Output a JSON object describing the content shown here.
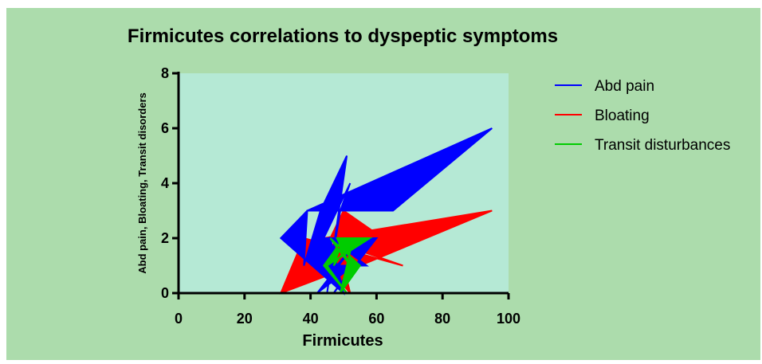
{
  "chart_data": {
    "type": "area",
    "title": "Firmicutes correlations to dyspeptic symptoms",
    "xlabel": "Firmicutes",
    "ylabel": "Abd pain, Bloating, Transit disorders",
    "xlim": [
      0,
      100
    ],
    "ylim": [
      0,
      8
    ],
    "xticks": [
      "0",
      "20",
      "40",
      "60",
      "80",
      "100"
    ],
    "yticks": [
      "0",
      "2",
      "4",
      "6",
      "8"
    ],
    "grid": false,
    "legend_position": "right",
    "plot_background": "#b5e9d5",
    "figure_background": "#acdcac",
    "series": [
      {
        "name": "Bloating",
        "color": "#ff0000",
        "points": [
          [
            31,
            0
          ],
          [
            38,
            2
          ],
          [
            68,
            1
          ],
          [
            44,
            2
          ],
          [
            95,
            3
          ],
          [
            55,
            1
          ],
          [
            46,
            2
          ],
          [
            50,
            3
          ],
          [
            62,
            2
          ],
          [
            43,
            1
          ],
          [
            48,
            2
          ],
          [
            52,
            0
          ],
          [
            45,
            1
          ],
          [
            58,
            2
          ],
          [
            47,
            0
          ],
          [
            53,
            1
          ]
        ]
      },
      {
        "name": "Abd pain",
        "color": "#0000ff",
        "points": [
          [
            31,
            2
          ],
          [
            39,
            3
          ],
          [
            95,
            6
          ],
          [
            65,
            3
          ],
          [
            39,
            3
          ],
          [
            38,
            1
          ],
          [
            43,
            3
          ],
          [
            51,
            5
          ],
          [
            45,
            0
          ],
          [
            49,
            3
          ],
          [
            52,
            4
          ],
          [
            44,
            2
          ],
          [
            60,
            2
          ],
          [
            47,
            0
          ],
          [
            53,
            1
          ],
          [
            42,
            0
          ],
          [
            55,
            2
          ],
          [
            48,
            1
          ],
          [
            57,
            1
          ],
          [
            46,
            2
          ],
          [
            50,
            0
          ]
        ]
      },
      {
        "name": "Transit disturbances",
        "color": "#00cc00",
        "points": [
          [
            44,
            1
          ],
          [
            50,
            2
          ],
          [
            47,
            1
          ],
          [
            53,
            2
          ],
          [
            49,
            0
          ],
          [
            55,
            1
          ],
          [
            46,
            2
          ],
          [
            52,
            1
          ],
          [
            48,
            2
          ],
          [
            58,
            2
          ],
          [
            45,
            1
          ],
          [
            51,
            0
          ]
        ]
      }
    ]
  }
}
